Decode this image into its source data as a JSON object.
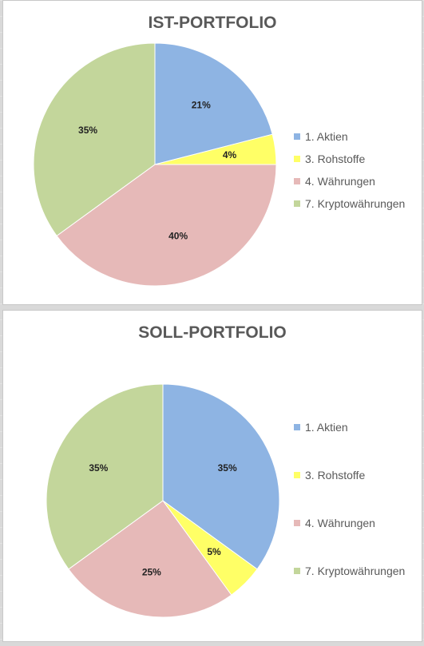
{
  "colors": {
    "aktien": "#8EB4E3",
    "rohstoffe": "#FFFF66",
    "waehrungen": "#E6B9B8",
    "krypto": "#C3D69B"
  },
  "chart_data": [
    {
      "type": "pie",
      "title": "IST-PORTFOLIO",
      "categories": [
        "1. Aktien",
        "3. Rohstoffe",
        "4. Währungen",
        "7. Kryptowährungen"
      ],
      "values": [
        21,
        4,
        40,
        35
      ],
      "labels": [
        "21%",
        "4%",
        "40%",
        "35%"
      ],
      "colors": [
        "#8EB4E3",
        "#FFFF66",
        "#E6B9B8",
        "#C3D69B"
      ],
      "legend_position": "right"
    },
    {
      "type": "pie",
      "title": "SOLL-PORTFOLIO",
      "categories": [
        "1. Aktien",
        "3. Rohstoffe",
        "4. Währungen",
        "7. Kryptowährungen"
      ],
      "values": [
        35,
        5,
        25,
        35
      ],
      "labels": [
        "35%",
        "5%",
        "25%",
        "35%"
      ],
      "colors": [
        "#8EB4E3",
        "#FFFF66",
        "#E6B9B8",
        "#C3D69B"
      ],
      "legend_position": "right"
    }
  ]
}
